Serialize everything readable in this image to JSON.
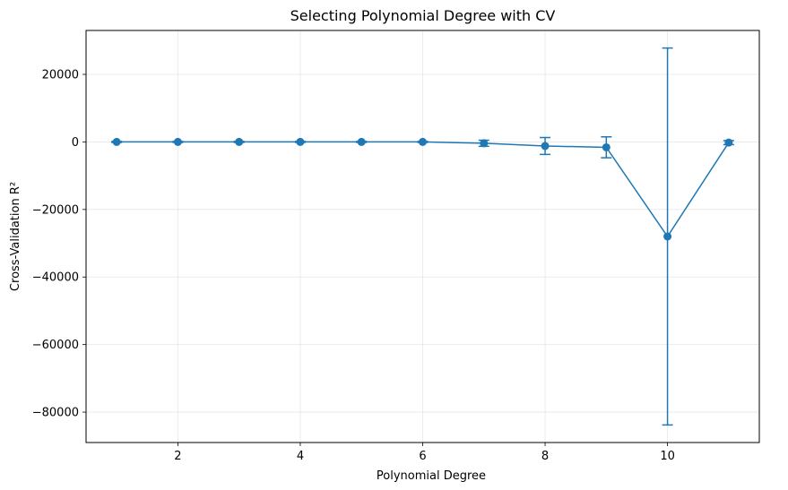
{
  "chart_data": {
    "type": "line",
    "title": "Selecting Polynomial Degree with CV",
    "xlabel": "Polynomial Degree",
    "ylabel": "Cross-Validation R²",
    "xlim": [
      0.5,
      11.5
    ],
    "ylim": [
      -89000,
      33000
    ],
    "xticks": [
      2,
      4,
      6,
      8,
      10
    ],
    "xtick_labels": [
      "2",
      "4",
      "6",
      "8",
      "10"
    ],
    "yticks": [
      20000,
      0,
      -20000,
      -40000,
      -60000,
      -80000
    ],
    "ytick_labels": [
      "20000",
      "0",
      "−20000",
      "−40000",
      "−60000",
      "−80000"
    ],
    "grid": true,
    "color": "#1f77b4",
    "series": [
      {
        "x": [
          1,
          2,
          3,
          4,
          5,
          6,
          7,
          8,
          9,
          10,
          11
        ],
        "y": [
          0,
          0,
          0,
          0,
          0,
          0,
          -400,
          -1200,
          -1600,
          -28000,
          -200
        ],
        "yerr": [
          150,
          150,
          150,
          150,
          150,
          150,
          900,
          2500,
          3100,
          55800,
          600
        ]
      }
    ]
  }
}
